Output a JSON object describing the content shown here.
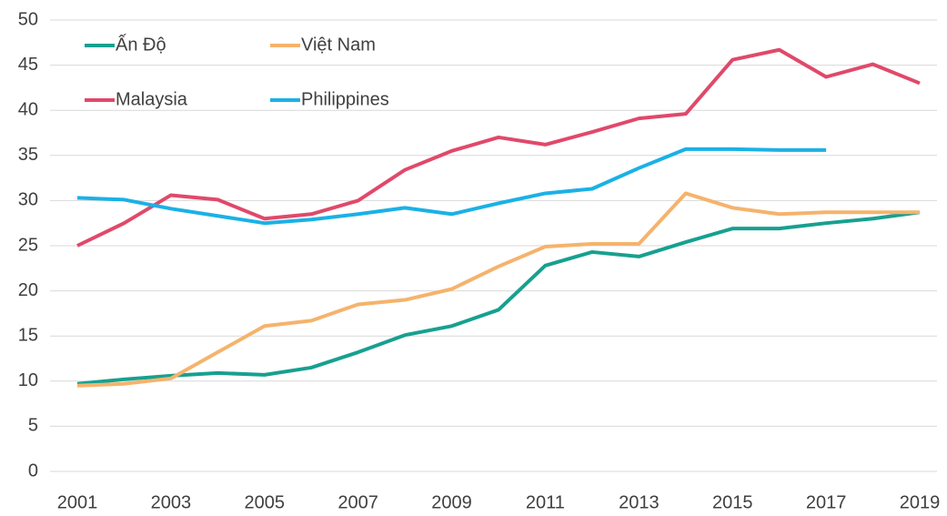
{
  "chart_data": {
    "type": "line",
    "x": [
      2001,
      2002,
      2003,
      2004,
      2005,
      2006,
      2007,
      2008,
      2009,
      2010,
      2011,
      2012,
      2013,
      2014,
      2015,
      2016,
      2017,
      2018,
      2019
    ],
    "series": [
      {
        "name": "Ấn Độ",
        "color": "#17a090",
        "values": [
          9.7,
          10.2,
          10.6,
          10.9,
          10.7,
          11.5,
          13.2,
          15.1,
          16.1,
          17.9,
          22.8,
          24.3,
          23.8,
          25.4,
          26.9,
          26.9,
          27.5,
          28.0,
          28.7
        ]
      },
      {
        "name": "Việt Nam",
        "color": "#f5b36c",
        "values": [
          9.5,
          9.7,
          10.3,
          13.2,
          16.1,
          16.7,
          18.5,
          19.0,
          20.2,
          22.7,
          24.9,
          25.2,
          25.2,
          30.8,
          29.2,
          28.5,
          28.7,
          28.7,
          28.7
        ]
      },
      {
        "name": "Malaysia",
        "color": "#e0496a",
        "values": [
          25.0,
          27.5,
          30.6,
          30.1,
          28.0,
          28.5,
          30.0,
          33.4,
          35.5,
          37.0,
          36.2,
          37.6,
          39.1,
          39.6,
          45.6,
          46.7,
          43.7,
          45.1,
          43.0
        ]
      },
      {
        "name": "Philippines",
        "color": "#1ab1e6",
        "values": [
          30.3,
          30.1,
          29.1,
          28.3,
          27.5,
          27.9,
          28.5,
          29.2,
          28.5,
          29.7,
          30.8,
          31.3,
          33.6,
          35.7,
          35.7,
          35.6,
          35.6,
          null,
          null
        ]
      }
    ],
    "xlim": [
      2001,
      2019
    ],
    "xticks": [
      2001,
      2003,
      2005,
      2007,
      2009,
      2011,
      2013,
      2015,
      2017,
      2019
    ],
    "ylim": [
      0,
      50
    ],
    "yticks": [
      0,
      5,
      10,
      15,
      20,
      25,
      30,
      35,
      40,
      45,
      50
    ],
    "grid": true,
    "legend": "upper-left"
  }
}
